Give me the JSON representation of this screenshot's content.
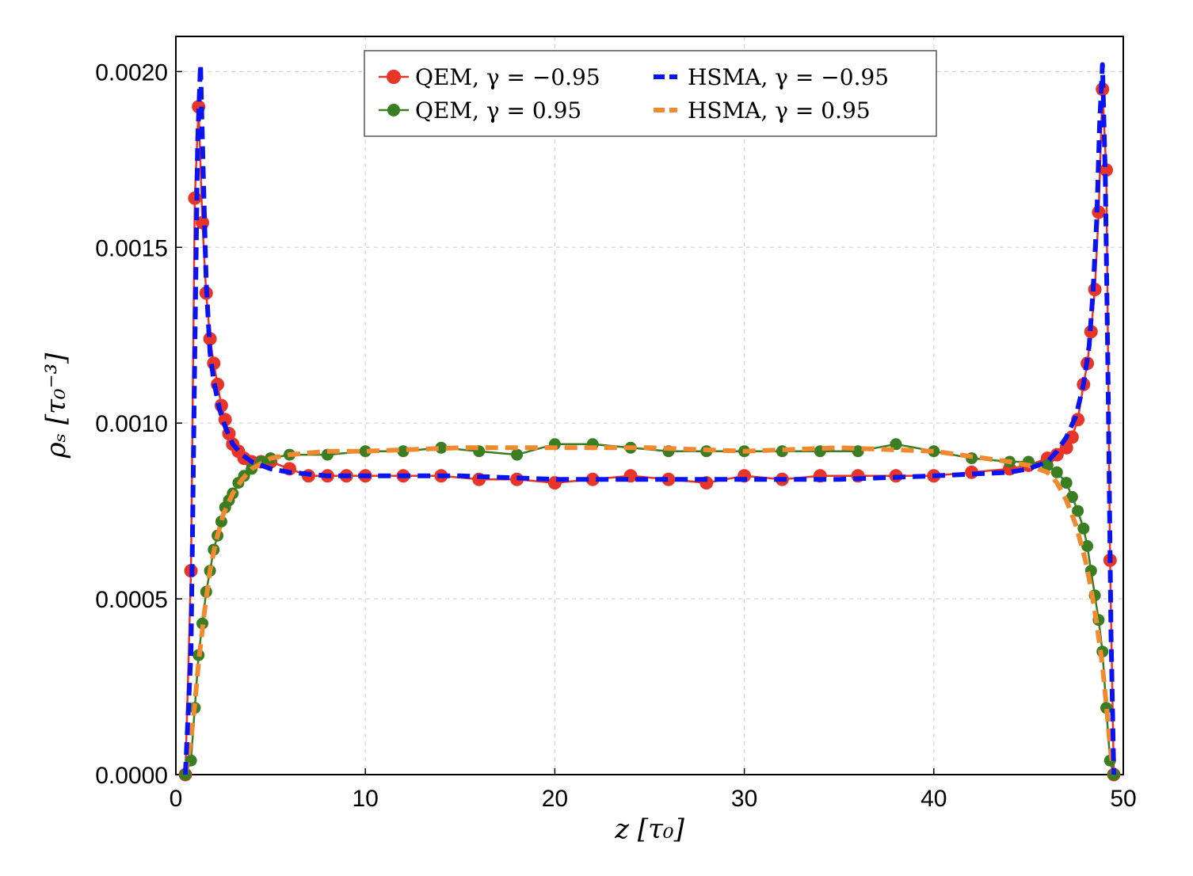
{
  "chart_data": {
    "type": "line",
    "xlabel": "z [τ₀]",
    "ylabel": "ρₛ [τ₀⁻³]",
    "xlim": [
      0,
      50
    ],
    "ylim": [
      0,
      0.0021
    ],
    "xticks": [
      "0",
      "10",
      "20",
      "30",
      "40",
      "50"
    ],
    "yticks": [
      "0.0000",
      "0.0005",
      "0.0010",
      "0.0015",
      "0.0020"
    ],
    "grid": true,
    "legend_position": "top-center",
    "series": [
      {
        "name": "QEM, γ = −0.95",
        "style": "line-markers",
        "color": "#e8352a",
        "x": [
          0.5,
          0.8,
          1.0,
          1.2,
          1.4,
          1.6,
          1.8,
          2.0,
          2.2,
          2.4,
          2.6,
          2.8,
          3.0,
          3.3,
          3.6,
          4.0,
          4.5,
          5.0,
          6.0,
          7.0,
          8.0,
          9.0,
          10.0,
          12.0,
          14.0,
          16.0,
          18.0,
          20.0,
          22.0,
          24.0,
          26.0,
          28.0,
          30.0,
          32.0,
          34.0,
          36.0,
          38.0,
          40.0,
          42.0,
          44.0,
          45.0,
          46.0,
          46.5,
          47.0,
          47.3,
          47.6,
          47.9,
          48.1,
          48.3,
          48.5,
          48.7,
          48.9,
          49.1,
          49.3,
          49.5
        ],
        "values": [
          0.0,
          0.00058,
          0.00164,
          0.0019,
          0.00157,
          0.00137,
          0.00124,
          0.00117,
          0.00111,
          0.00105,
          0.00101,
          0.00097,
          0.00094,
          0.00092,
          0.0009,
          0.00089,
          0.00089,
          0.00089,
          0.00087,
          0.00085,
          0.00085,
          0.00085,
          0.00085,
          0.00085,
          0.00085,
          0.00084,
          0.00084,
          0.00083,
          0.00084,
          0.00085,
          0.00084,
          0.00083,
          0.00085,
          0.00084,
          0.00085,
          0.00085,
          0.00085,
          0.00085,
          0.00086,
          0.00087,
          0.00088,
          0.0009,
          0.00091,
          0.00093,
          0.00096,
          0.00101,
          0.00111,
          0.00117,
          0.00126,
          0.00138,
          0.0016,
          0.00195,
          0.00172,
          0.00061,
          0.0
        ]
      },
      {
        "name": "QEM, γ = 0.95",
        "style": "line-markers",
        "color": "#3a7d22",
        "x": [
          0.5,
          0.8,
          1.0,
          1.2,
          1.4,
          1.6,
          1.8,
          2.0,
          2.2,
          2.4,
          2.6,
          2.8,
          3.0,
          3.3,
          3.6,
          4.0,
          4.5,
          5.0,
          6.0,
          8.0,
          10.0,
          12.0,
          14.0,
          16.0,
          18.0,
          20.0,
          22.0,
          24.0,
          26.0,
          28.0,
          30.0,
          32.0,
          34.0,
          36.0,
          38.0,
          40.0,
          42.0,
          44.0,
          45.0,
          46.0,
          46.5,
          47.0,
          47.3,
          47.6,
          47.9,
          48.1,
          48.3,
          48.5,
          48.7,
          48.9,
          49.1,
          49.3,
          49.5
        ],
        "values": [
          0.0,
          4e-05,
          0.00019,
          0.00034,
          0.00043,
          0.00052,
          0.00058,
          0.00064,
          0.00068,
          0.00072,
          0.00076,
          0.00078,
          0.0008,
          0.00083,
          0.00085,
          0.00087,
          0.00089,
          0.0009,
          0.00091,
          0.00091,
          0.00092,
          0.00092,
          0.00093,
          0.00092,
          0.00091,
          0.00094,
          0.00094,
          0.00093,
          0.00092,
          0.00092,
          0.00092,
          0.00092,
          0.00092,
          0.00092,
          0.00094,
          0.00092,
          0.0009,
          0.00089,
          0.00089,
          0.00088,
          0.00086,
          0.00083,
          0.00079,
          0.00075,
          0.0007,
          0.00065,
          0.00058,
          0.00051,
          0.00044,
          0.00035,
          0.00019,
          4e-05,
          0.0
        ]
      },
      {
        "name": "HSMA, γ = −0.95",
        "style": "dashed",
        "color": "#0a14f0",
        "x": [
          0.5,
          0.8,
          1.0,
          1.15,
          1.3,
          1.45,
          1.6,
          1.8,
          2.0,
          2.3,
          2.6,
          3.0,
          3.5,
          4.0,
          5.0,
          6.0,
          8.0,
          10.0,
          15.0,
          20.0,
          25.0,
          30.0,
          35.0,
          40.0,
          44.0,
          45.0,
          46.0,
          46.5,
          47.0,
          47.5,
          47.9,
          48.2,
          48.4,
          48.6,
          48.75,
          48.9,
          49.05,
          49.2,
          49.35,
          49.5
        ],
        "values": [
          0.0,
          0.00035,
          0.0012,
          0.0018,
          0.00202,
          0.0017,
          0.0014,
          0.0012,
          0.00112,
          0.00104,
          0.00099,
          0.00094,
          0.00091,
          0.00089,
          0.00087,
          0.00086,
          0.00085,
          0.00085,
          0.00085,
          0.00084,
          0.00084,
          0.00084,
          0.00084,
          0.00085,
          0.00086,
          0.00087,
          0.00089,
          0.00092,
          0.00096,
          0.00102,
          0.00111,
          0.00122,
          0.00137,
          0.00158,
          0.00185,
          0.00202,
          0.0017,
          0.0011,
          0.0004,
          0.0
        ]
      },
      {
        "name": "HSMA, γ = 0.95",
        "style": "dashed",
        "color": "#f08a30",
        "x": [
          0.5,
          0.8,
          1.0,
          1.2,
          1.5,
          1.8,
          2.1,
          2.5,
          3.0,
          3.5,
          4.0,
          5.0,
          6.0,
          8.0,
          10.0,
          15.0,
          20.0,
          25.0,
          30.0,
          35.0,
          40.0,
          44.0,
          45.0,
          46.0,
          46.5,
          47.0,
          47.5,
          48.0,
          48.3,
          48.6,
          48.9,
          49.1,
          49.3,
          49.5
        ],
        "values": [
          0.0,
          0.0001,
          0.0002,
          0.00032,
          0.00046,
          0.00058,
          0.00066,
          0.00074,
          0.0008,
          0.00084,
          0.00087,
          0.0009,
          0.00091,
          0.00092,
          0.00092,
          0.00093,
          0.00093,
          0.00093,
          0.00092,
          0.00093,
          0.00092,
          0.00089,
          0.00088,
          0.00086,
          0.00083,
          0.00078,
          0.00071,
          0.00061,
          0.00053,
          0.00043,
          0.00031,
          0.0002,
          8e-05,
          0.0
        ]
      }
    ]
  }
}
